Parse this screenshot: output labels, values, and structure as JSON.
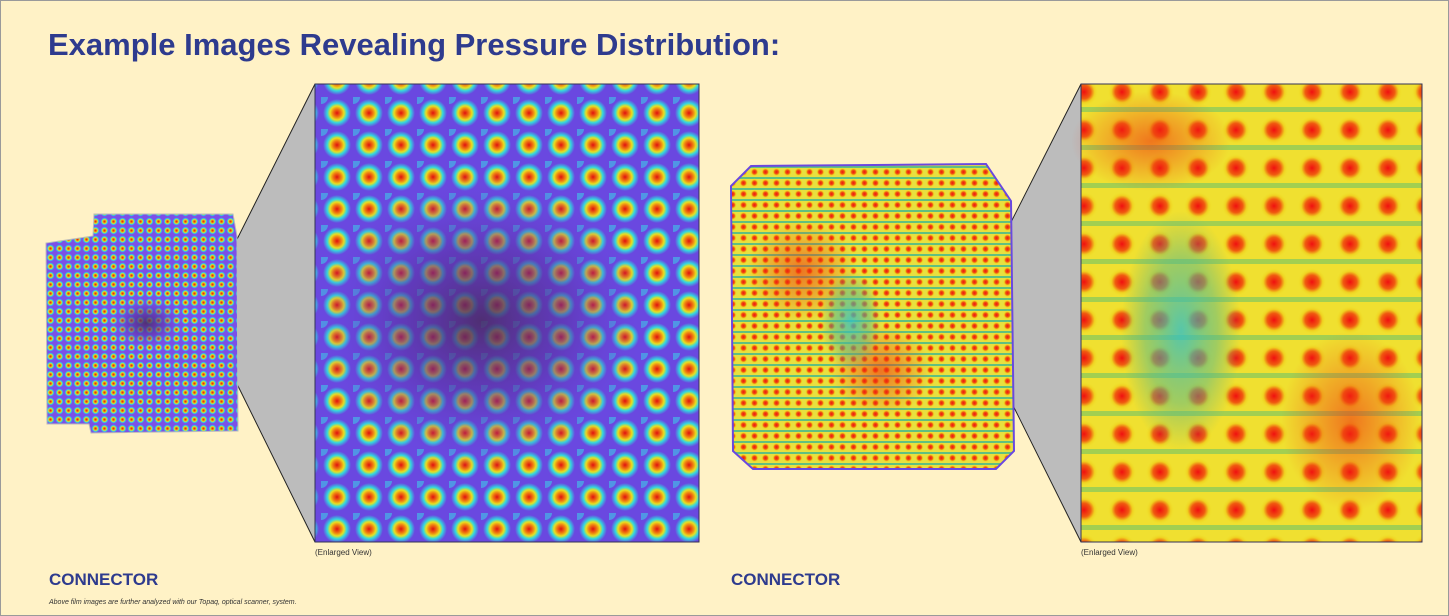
{
  "header": {
    "title": "Example Images Revealing Pressure Distribution:"
  },
  "panels": [
    {
      "enlarged_caption": "(Enlarged View)",
      "label": "CONNECTOR"
    },
    {
      "enlarged_caption": "(Enlarged View)",
      "label": "CONNECTOR"
    }
  ],
  "footnote": "Above film images are further analyzed with our Topaq, optical scanner, system."
}
